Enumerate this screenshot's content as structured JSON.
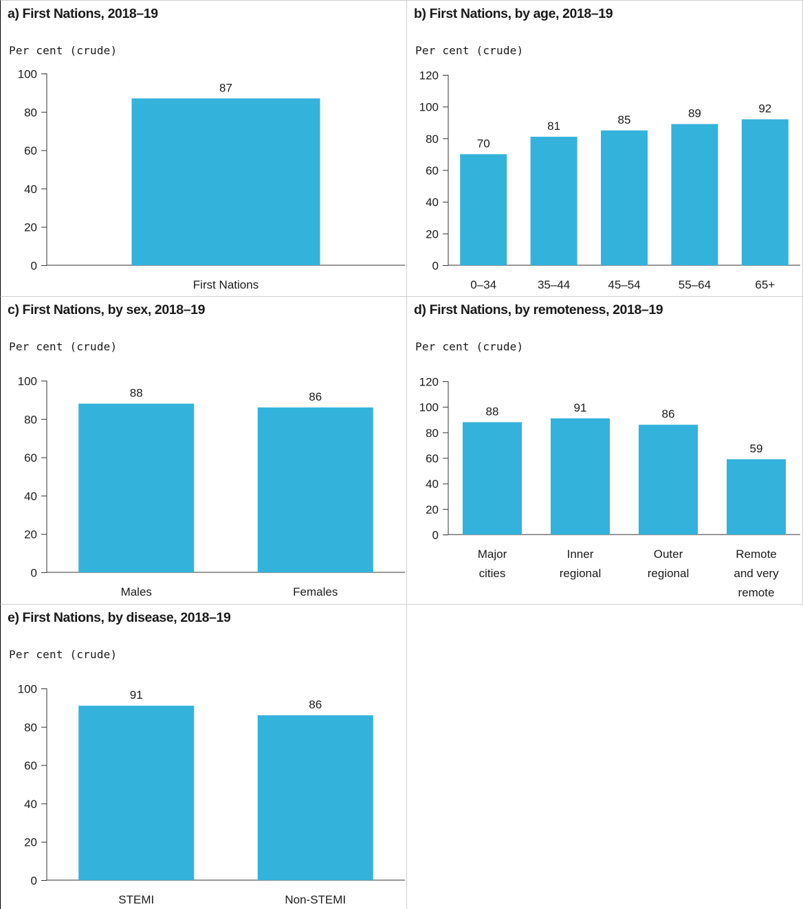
{
  "colors": {
    "bar": "#33b2dc",
    "axis": "#333333"
  },
  "chart_data": [
    {
      "type": "bar",
      "title": "a) First Nations, 2018–19",
      "ylabel": "Per cent (crude)",
      "xlabel": "",
      "ylim": [
        0,
        100
      ],
      "yticks": [
        0,
        20,
        40,
        60,
        80,
        100
      ],
      "categories": [
        "First Nations"
      ],
      "values": [
        87
      ],
      "legend": false,
      "grid": false
    },
    {
      "type": "bar",
      "title": "b) First Nations, by age, 2018–19",
      "ylabel": "Per cent (crude)",
      "xlabel": "",
      "ylim": [
        0,
        120
      ],
      "yticks": [
        0,
        20,
        40,
        60,
        80,
        100,
        120
      ],
      "categories": [
        "0–34",
        "35–44",
        "45–54",
        "55–64",
        "65+"
      ],
      "values": [
        70,
        81,
        85,
        89,
        92
      ],
      "legend": false,
      "grid": false
    },
    {
      "type": "bar",
      "title": "c) First Nations, by sex, 2018–19",
      "ylabel": "Per cent (crude)",
      "xlabel": "",
      "ylim": [
        0,
        100
      ],
      "yticks": [
        0,
        20,
        40,
        60,
        80,
        100
      ],
      "categories": [
        "Males",
        "Females"
      ],
      "values": [
        88,
        86
      ],
      "legend": false,
      "grid": false
    },
    {
      "type": "bar",
      "title": "d) First Nations, by remoteness, 2018–19",
      "ylabel": "Per cent (crude)",
      "xlabel": "",
      "ylim": [
        0,
        120
      ],
      "yticks": [
        0,
        20,
        40,
        60,
        80,
        100,
        120
      ],
      "categories": [
        "Major cities",
        "Inner regional",
        "Outer regional",
        "Remote and very remote"
      ],
      "category_lines": [
        [
          "Major",
          "cities"
        ],
        [
          "Inner",
          "regional"
        ],
        [
          "Outer",
          "regional"
        ],
        [
          "Remote",
          "and very",
          "remote"
        ]
      ],
      "values": [
        88,
        91,
        86,
        59
      ],
      "legend": false,
      "grid": false
    },
    {
      "type": "bar",
      "title": "e) First Nations, by disease, 2018–19",
      "ylabel": "Per cent (crude)",
      "xlabel": "",
      "ylim": [
        0,
        100
      ],
      "yticks": [
        0,
        20,
        40,
        60,
        80,
        100
      ],
      "categories": [
        "STEMI",
        "Non-STEMI"
      ],
      "values": [
        91,
        86
      ],
      "legend": false,
      "grid": false
    }
  ]
}
